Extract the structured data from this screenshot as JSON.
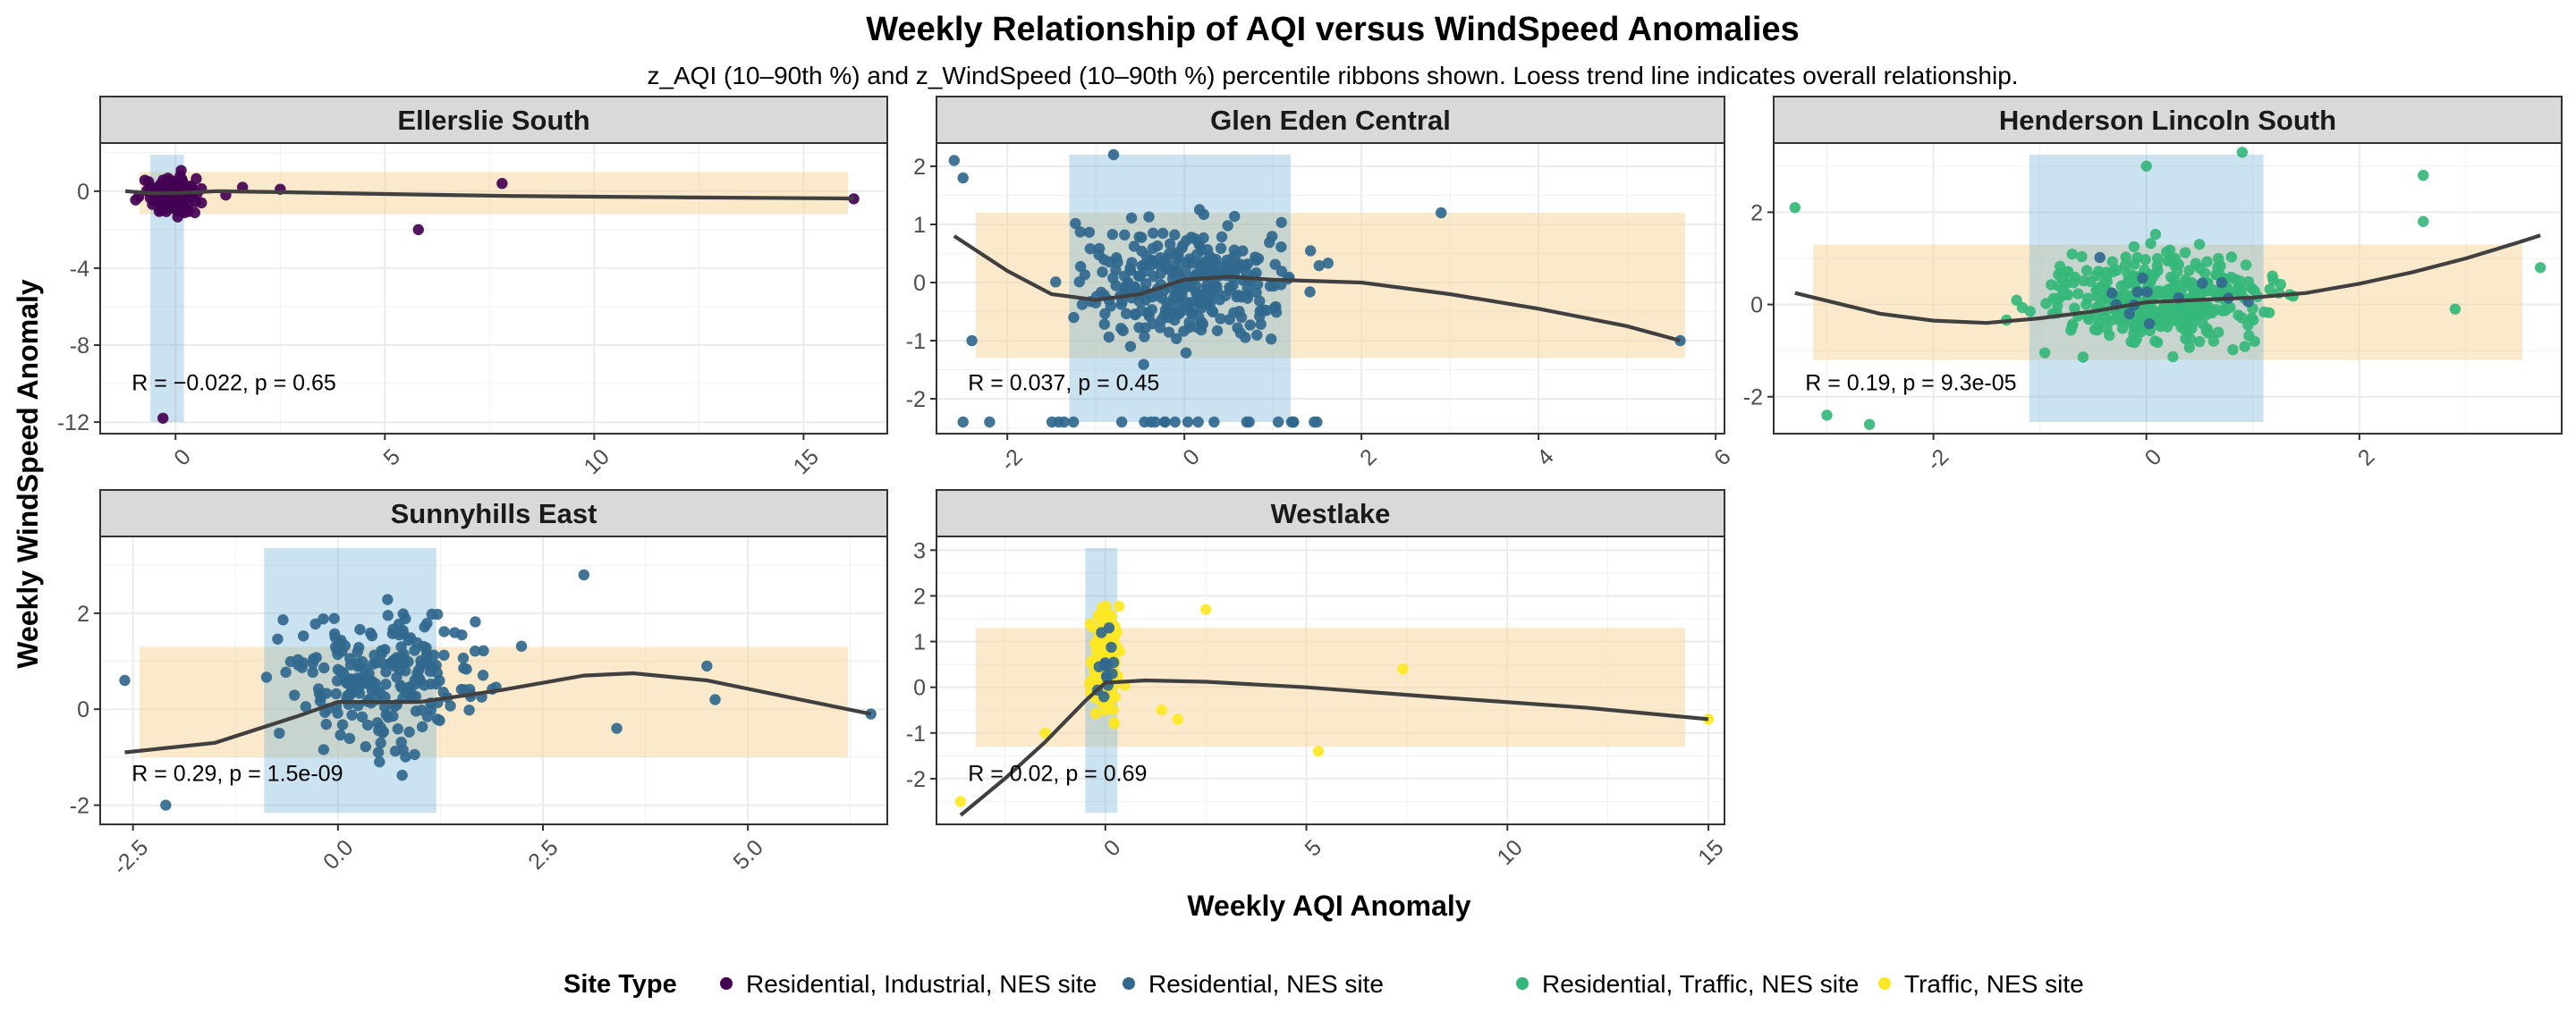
{
  "title": "Weekly Relationship of AQI versus WindSpeed Anomalies",
  "subtitle": "z_AQI (10–90th %) and z_WindSpeed (10–90th %) percentile ribbons shown. Loess trend line indicates overall relationship.",
  "xlabel": "Weekly AQI Anomaly",
  "ylabel": "Weekly WindSpeed Anomaly",
  "legend": {
    "title": "Site Type",
    "position": "bottom",
    "items": [
      {
        "label": "Residential, Industrial, NES site",
        "color": "#440154"
      },
      {
        "label": "Residential, NES site",
        "color": "#31688E"
      },
      {
        "label": "Residential, Traffic, NES site",
        "color": "#35B779"
      },
      {
        "label": "Traffic, NES site",
        "color": "#FDE725"
      }
    ]
  },
  "colors": {
    "ribbon_x": "#6BAED6",
    "ribbon_y": "#F5D79E",
    "trend": "#404040",
    "strip": "#D9D9D9",
    "grid": "#EBEBEB"
  },
  "chart_data": [
    {
      "type": "scatter",
      "panel": "Ellerslie South",
      "color": "#440154",
      "xlim": [
        -1.8,
        17
      ],
      "ylim": [
        -12.6,
        2.5
      ],
      "xticks": [
        0,
        5,
        10,
        15
      ],
      "xtick_labels": [
        "0",
        "5",
        "10",
        "15"
      ],
      "yticks": [
        0,
        -4,
        -8,
        -12
      ],
      "ytick_labels": [
        "0",
        "-4",
        "-8",
        "-12"
      ],
      "ribbon_x": [
        -0.6,
        0.2
      ],
      "ribbon_y": [
        -1.2,
        1.0
      ],
      "stat": "R = −0.022, p = 0.65",
      "trend": [
        [
          -1.2,
          0.0
        ],
        [
          -0.6,
          -0.1
        ],
        [
          0.0,
          -0.1
        ],
        [
          1.0,
          0.0
        ],
        [
          2.5,
          -0.05
        ],
        [
          5.0,
          -0.15
        ],
        [
          8.0,
          -0.25
        ],
        [
          12.0,
          -0.32
        ],
        [
          16.2,
          -0.38
        ]
      ],
      "cluster": {
        "x_range": [
          -1.2,
          1.0
        ],
        "y_range": [
          -2.0,
          1.7
        ],
        "n": 140
      },
      "outliers": [
        [
          -0.3,
          -11.8
        ],
        [
          5.8,
          -2.0
        ],
        [
          7.8,
          0.4
        ],
        [
          16.2,
          -0.4
        ],
        [
          2.5,
          0.1
        ],
        [
          1.6,
          0.2
        ],
        [
          1.2,
          -0.2
        ]
      ]
    },
    {
      "type": "scatter",
      "panel": "Glen Eden Central",
      "color": "#31688E",
      "xlim": [
        -2.8,
        6.1
      ],
      "ylim": [
        -2.6,
        2.4
      ],
      "xticks": [
        -2,
        0,
        2,
        4,
        6
      ],
      "xtick_labels": [
        "-2",
        "0",
        "2",
        "4",
        "6"
      ],
      "yticks": [
        2,
        1,
        0,
        -1,
        -2
      ],
      "ytick_labels": [
        "2",
        "1",
        "0",
        "-1",
        "-2"
      ],
      "ribbon_x": [
        -1.3,
        1.2
      ],
      "ribbon_y": [
        -1.3,
        1.2
      ],
      "stat": "R = 0.037, p = 0.45",
      "trend": [
        [
          -2.6,
          0.8
        ],
        [
          -2.0,
          0.2
        ],
        [
          -1.5,
          -0.2
        ],
        [
          -1.0,
          -0.3
        ],
        [
          -0.5,
          -0.2
        ],
        [
          0.0,
          0.05
        ],
        [
          0.5,
          0.1
        ],
        [
          1.0,
          0.05
        ],
        [
          2.0,
          0.0
        ],
        [
          3.0,
          -0.2
        ],
        [
          4.0,
          -0.45
        ],
        [
          5.0,
          -0.75
        ],
        [
          5.6,
          -1.0
        ]
      ],
      "cluster": {
        "x_range": [
          -2.0,
          2.0
        ],
        "y_range": [
          -1.9,
          1.9
        ],
        "n": 320
      },
      "floor": {
        "x_range": [
          -1.5,
          1.5
        ],
        "y": -2.4,
        "n": 22
      },
      "outliers": [
        [
          -2.6,
          2.1
        ],
        [
          -2.5,
          1.8
        ],
        [
          2.9,
          1.2
        ],
        [
          5.6,
          -1.0
        ],
        [
          -2.4,
          -1.0
        ],
        [
          -0.8,
          2.2
        ],
        [
          -2.5,
          -2.4
        ],
        [
          -2.2,
          -2.4
        ]
      ]
    },
    {
      "type": "scatter",
      "panel": "Henderson Lincoln South",
      "color": "#35B779",
      "second_color": "#31688E",
      "xlim": [
        -3.5,
        3.9
      ],
      "ylim": [
        -2.8,
        3.5
      ],
      "xticks": [
        -2,
        0,
        2
      ],
      "xtick_labels": [
        "-2",
        "0",
        "2"
      ],
      "yticks": [
        2,
        0,
        -2
      ],
      "ytick_labels": [
        "2",
        "0",
        "-2"
      ],
      "ribbon_x": [
        -1.1,
        1.1
      ],
      "ribbon_y": [
        -1.2,
        1.3
      ],
      "stat": "R = 0.19, p = 9.3e-05",
      "trend": [
        [
          -3.3,
          0.25
        ],
        [
          -2.5,
          -0.2
        ],
        [
          -2.0,
          -0.35
        ],
        [
          -1.5,
          -0.4
        ],
        [
          -1.0,
          -0.3
        ],
        [
          -0.5,
          -0.15
        ],
        [
          0.0,
          0.05
        ],
        [
          0.5,
          0.1
        ],
        [
          1.0,
          0.15
        ],
        [
          1.5,
          0.25
        ],
        [
          2.0,
          0.45
        ],
        [
          2.5,
          0.7
        ],
        [
          3.0,
          1.0
        ],
        [
          3.5,
          1.35
        ],
        [
          3.7,
          1.5
        ]
      ],
      "cluster": {
        "x_range": [
          -1.9,
          2.0
        ],
        "y_range": [
          -1.9,
          2.2
        ],
        "n": 330
      },
      "outliers": [
        [
          -3.3,
          2.1
        ],
        [
          -3.0,
          -2.4
        ],
        [
          -2.6,
          -2.6
        ],
        [
          2.6,
          2.8
        ],
        [
          3.7,
          0.8
        ],
        [
          0.9,
          3.3
        ],
        [
          0.0,
          3.0
        ],
        [
          2.9,
          -0.1
        ],
        [
          2.6,
          1.8
        ]
      ]
    },
    {
      "type": "scatter",
      "panel": "Sunnyhills East",
      "color": "#31688E",
      "xlim": [
        -2.9,
        6.7
      ],
      "ylim": [
        -2.4,
        3.6
      ],
      "xticks": [
        -2.5,
        0.0,
        2.5,
        5.0
      ],
      "xtick_labels": [
        "-2.5",
        "0.0",
        "2.5",
        "5.0"
      ],
      "yticks": [
        2,
        0,
        -2
      ],
      "ytick_labels": [
        "2",
        "0",
        "-2"
      ],
      "ribbon_x": [
        -0.9,
        1.2
      ],
      "ribbon_y": [
        -1.0,
        1.3
      ],
      "stat": "R = 0.29, p = 1.5e-09",
      "trend": [
        [
          -2.6,
          -0.9
        ],
        [
          -1.5,
          -0.7
        ],
        [
          -0.5,
          -0.15
        ],
        [
          0.0,
          0.15
        ],
        [
          1.0,
          0.15
        ],
        [
          2.0,
          0.4
        ],
        [
          3.0,
          0.7
        ],
        [
          3.6,
          0.75
        ],
        [
          4.5,
          0.6
        ],
        [
          5.5,
          0.25
        ],
        [
          6.5,
          -0.1
        ]
      ],
      "cluster": {
        "x_range": [
          -1.5,
          2.6
        ],
        "y_range": [
          -2.1,
          3.2
        ],
        "n": 230
      },
      "outliers": [
        [
          -2.6,
          0.6
        ],
        [
          3.0,
          2.8
        ],
        [
          3.4,
          -0.4
        ],
        [
          4.5,
          0.9
        ],
        [
          4.6,
          0.2
        ],
        [
          6.5,
          -0.1
        ],
        [
          -2.1,
          -2.0
        ]
      ]
    },
    {
      "type": "scatter",
      "panel": "Westlake",
      "color": "#FDE725",
      "second_color": "#31688E",
      "xlim": [
        -4.2,
        15.4
      ],
      "ylim": [
        -3.0,
        3.3
      ],
      "xticks": [
        0,
        5,
        10,
        15
      ],
      "xtick_labels": [
        "0",
        "5",
        "10",
        "15"
      ],
      "yticks": [
        3,
        2,
        1,
        0,
        -1,
        -2
      ],
      "ytick_labels": [
        "3",
        "2",
        "1",
        "0",
        "-1",
        "-2"
      ],
      "ribbon_x": [
        -0.5,
        0.3
      ],
      "ribbon_y": [
        -1.3,
        1.3
      ],
      "stat": "R = 0.02, p = 0.69",
      "trend": [
        [
          -3.6,
          -2.8
        ],
        [
          -2.5,
          -2.0
        ],
        [
          -1.5,
          -1.2
        ],
        [
          -0.5,
          -0.3
        ],
        [
          0.0,
          0.1
        ],
        [
          1.0,
          0.15
        ],
        [
          2.5,
          0.12
        ],
        [
          5.0,
          0.0
        ],
        [
          8.0,
          -0.2
        ],
        [
          12.0,
          -0.45
        ],
        [
          15.0,
          -0.7
        ]
      ],
      "cluster": {
        "x_range": [
          -0.6,
          0.6
        ],
        "y_range": [
          -1.6,
          2.7
        ],
        "n": 220
      },
      "outliers": [
        [
          -3.6,
          -2.5
        ],
        [
          2.5,
          1.7
        ],
        [
          5.3,
          -1.4
        ],
        [
          7.4,
          0.4
        ],
        [
          15.0,
          -0.7
        ],
        [
          1.4,
          -0.5
        ],
        [
          1.8,
          -0.7
        ],
        [
          -1.5,
          -1.0
        ]
      ]
    }
  ]
}
